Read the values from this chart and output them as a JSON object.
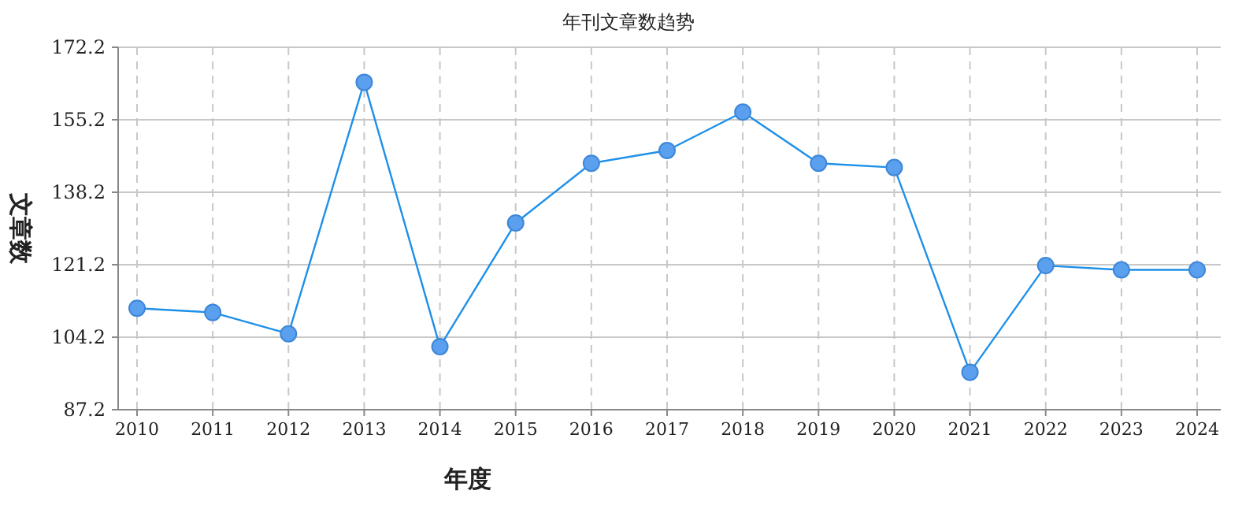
{
  "chart_data": {
    "type": "line",
    "title": "年刊文章数趋势",
    "xlabel": "年度",
    "ylabel": "文章数",
    "categories": [
      "2010",
      "2011",
      "2012",
      "2013",
      "2014",
      "2015",
      "2016",
      "2017",
      "2018",
      "2019",
      "2020",
      "2021",
      "2022",
      "2023",
      "2024"
    ],
    "series": [
      {
        "color": "#1e90e8",
        "values": [
          111,
          110,
          105,
          164,
          102,
          131,
          145,
          148,
          157,
          145,
          144,
          96,
          121,
          120,
          120
        ]
      }
    ],
    "ylim": [
      87.2,
      172.2
    ],
    "yticks": [
      87.2,
      104.2,
      121.2,
      138.2,
      155.2,
      172.2
    ],
    "grid": true,
    "marker": "circle",
    "line_style": "solid"
  }
}
